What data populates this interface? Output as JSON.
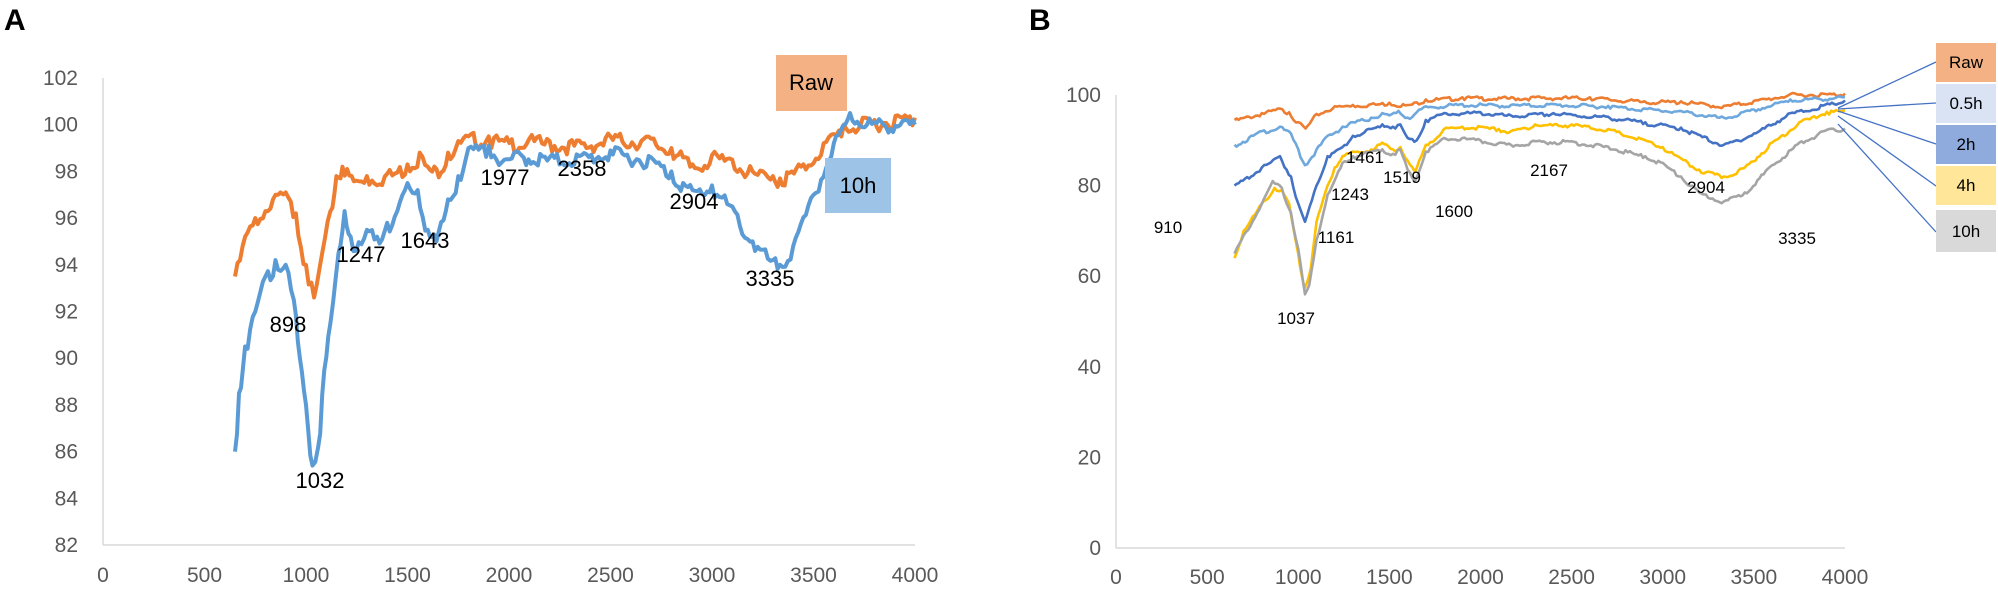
{
  "chart_data": [
    {
      "panel": "A",
      "type": "line",
      "title": "",
      "xlabel": "",
      "ylabel": "",
      "xlim": [
        0,
        4000
      ],
      "ylim": [
        82,
        102
      ],
      "xticks": [
        0,
        500,
        1000,
        1500,
        2000,
        2500,
        3000,
        3500,
        4000
      ],
      "yticks": [
        82,
        84,
        86,
        88,
        90,
        92,
        94,
        96,
        98,
        100,
        102
      ],
      "series": [
        {
          "name": "Raw",
          "color": "#ED7D31",
          "points": [
            [
              650,
              93.5
            ],
            [
              700,
              95.2
            ],
            [
              750,
              96.0
            ],
            [
              800,
              96.3
            ],
            [
              850,
              97.0
            ],
            [
              900,
              97.1
            ],
            [
              950,
              96.2
            ],
            [
              1000,
              94.0
            ],
            [
              1040,
              92.6
            ],
            [
              1080,
              94.5
            ],
            [
              1120,
              96.3
            ],
            [
              1150,
              97.8
            ],
            [
              1180,
              98.2
            ],
            [
              1247,
              97.6
            ],
            [
              1300,
              97.8
            ],
            [
              1400,
              97.9
            ],
            [
              1500,
              98.3
            ],
            [
              1560,
              98.8
            ],
            [
              1600,
              98.2
            ],
            [
              1643,
              98.1
            ],
            [
              1700,
              98.8
            ],
            [
              1750,
              99.3
            ],
            [
              1800,
              99.5
            ],
            [
              1900,
              99.5
            ],
            [
              1977,
              99.3
            ],
            [
              2100,
              99.4
            ],
            [
              2200,
              99.3
            ],
            [
              2358,
              99.2
            ],
            [
              2500,
              99.5
            ],
            [
              2700,
              99.4
            ],
            [
              2800,
              99.0
            ],
            [
              2904,
              98.3
            ],
            [
              3000,
              98.7
            ],
            [
              3100,
              98.5
            ],
            [
              3200,
              98.0
            ],
            [
              3300,
              97.8
            ],
            [
              3335,
              97.7
            ],
            [
              3450,
              98.3
            ],
            [
              3550,
              99.2
            ],
            [
              3650,
              100.0
            ],
            [
              3800,
              100.2
            ],
            [
              3950,
              100.4
            ],
            [
              4000,
              100.3
            ]
          ]
        },
        {
          "name": "10h",
          "color": "#5B9BD5",
          "points": [
            [
              650,
              86.0
            ],
            [
              670,
              88.5
            ],
            [
              700,
              90.5
            ],
            [
              750,
              92.0
            ],
            [
              800,
              93.5
            ],
            [
              850,
              94.2
            ],
            [
              900,
              94.0
            ],
            [
              940,
              92.5
            ],
            [
              970,
              90.0
            ],
            [
              1000,
              88.0
            ],
            [
              1032,
              85.4
            ],
            [
              1060,
              86.2
            ],
            [
              1090,
              89.5
            ],
            [
              1120,
              91.5
            ],
            [
              1160,
              94.5
            ],
            [
              1190,
              96.3
            ],
            [
              1220,
              95.2
            ],
            [
              1247,
              94.6
            ],
            [
              1300,
              95.5
            ],
            [
              1350,
              95.2
            ],
            [
              1400,
              95.8
            ],
            [
              1450,
              96.3
            ],
            [
              1500,
              97.5
            ],
            [
              1550,
              97.2
            ],
            [
              1600,
              95.5
            ],
            [
              1643,
              95.0
            ],
            [
              1700,
              96.8
            ],
            [
              1750,
              97.8
            ],
            [
              1800,
              99.0
            ],
            [
              1900,
              99.1
            ],
            [
              1977,
              98.5
            ],
            [
              2050,
              98.8
            ],
            [
              2200,
              98.6
            ],
            [
              2358,
              98.7
            ],
            [
              2500,
              98.9
            ],
            [
              2700,
              98.6
            ],
            [
              2800,
              98.0
            ],
            [
              2904,
              97.2
            ],
            [
              3000,
              97.4
            ],
            [
              3100,
              96.5
            ],
            [
              3200,
              95.0
            ],
            [
              3300,
              94.2
            ],
            [
              3335,
              94.0
            ],
            [
              3400,
              94.8
            ],
            [
              3500,
              97.0
            ],
            [
              3600,
              99.2
            ],
            [
              3680,
              100.5
            ],
            [
              3800,
              100.1
            ],
            [
              3950,
              100.2
            ],
            [
              4000,
              100.0
            ]
          ]
        }
      ],
      "legend": [
        "Raw",
        "10h"
      ],
      "annotations": [
        "898",
        "1032",
        "1247",
        "1643",
        "1977",
        "2358",
        "2904",
        "3335"
      ]
    },
    {
      "panel": "B",
      "type": "line",
      "title": "",
      "xlabel": "",
      "ylabel": "",
      "xlim": [
        0,
        4000
      ],
      "ylim": [
        0,
        100
      ],
      "xticks": [
        0,
        500,
        1000,
        1500,
        2000,
        2500,
        3000,
        3500,
        4000
      ],
      "yticks": [
        0,
        20,
        40,
        60,
        80,
        100
      ],
      "series": [
        {
          "name": "Raw",
          "color": "#ED7D31",
          "points": [
            [
              650,
              94.5
            ],
            [
              800,
              96.0
            ],
            [
              900,
              97.0
            ],
            [
              950,
              96.2
            ],
            [
              1000,
              94.0
            ],
            [
              1040,
              92.6
            ],
            [
              1100,
              95.8
            ],
            [
              1200,
              97.5
            ],
            [
              1300,
              97.8
            ],
            [
              1400,
              98.0
            ],
            [
              1500,
              98.3
            ],
            [
              1600,
              97.8
            ],
            [
              1700,
              99.0
            ],
            [
              1900,
              99.5
            ],
            [
              2100,
              99.4
            ],
            [
              2300,
              99.5
            ],
            [
              2600,
              99.5
            ],
            [
              2900,
              98.6
            ],
            [
              3100,
              98.6
            ],
            [
              3335,
              97.6
            ],
            [
              3500,
              98.7
            ],
            [
              3700,
              100.2
            ],
            [
              4000,
              100.3
            ]
          ]
        },
        {
          "name": "0.5h",
          "color": "#6FA8DC",
          "points": [
            [
              650,
              89.0
            ],
            [
              800,
              92.0
            ],
            [
              900,
              93.0
            ],
            [
              960,
              91.5
            ],
            [
              1000,
              88.0
            ],
            [
              1037,
              84.5
            ],
            [
              1100,
              88.0
            ],
            [
              1161,
              91.0
            ],
            [
              1243,
              93.0
            ],
            [
              1300,
              94.0
            ],
            [
              1400,
              95.0
            ],
            [
              1461,
              96.0
            ],
            [
              1500,
              95.5
            ],
            [
              1550,
              96.5
            ],
            [
              1600,
              95.0
            ],
            [
              1700,
              97.5
            ],
            [
              1900,
              98.0
            ],
            [
              2167,
              97.8
            ],
            [
              2400,
              98.0
            ],
            [
              2700,
              97.6
            ],
            [
              2904,
              97.0
            ],
            [
              3100,
              96.5
            ],
            [
              3335,
              95.0
            ],
            [
              3500,
              96.8
            ],
            [
              3700,
              99.0
            ],
            [
              4000,
              99.6
            ]
          ]
        },
        {
          "name": "2h",
          "color": "#4472C4",
          "points": [
            [
              650,
              80.0
            ],
            [
              800,
              84.0
            ],
            [
              900,
              86.5
            ],
            [
              960,
              82.0
            ],
            [
              1000,
              76.0
            ],
            [
              1037,
              72.0
            ],
            [
              1100,
              80.0
            ],
            [
              1161,
              86.5
            ],
            [
              1243,
              88.5
            ],
            [
              1300,
              91.0
            ],
            [
              1400,
              92.5
            ],
            [
              1461,
              93.5
            ],
            [
              1519,
              93.0
            ],
            [
              1560,
              93.5
            ],
            [
              1600,
              90.5
            ],
            [
              1650,
              90.0
            ],
            [
              1700,
              94.5
            ],
            [
              1800,
              96.0
            ],
            [
              2000,
              96.2
            ],
            [
              2167,
              95.5
            ],
            [
              2400,
              96.0
            ],
            [
              2700,
              95.2
            ],
            [
              2904,
              94.0
            ],
            [
              3100,
              92.8
            ],
            [
              3335,
              89.0
            ],
            [
              3500,
              91.5
            ],
            [
              3700,
              96.0
            ],
            [
              4000,
              98.8
            ]
          ]
        },
        {
          "name": "4h",
          "color": "#FFC000",
          "points": [
            [
              650,
              64.0
            ],
            [
              700,
              70.0
            ],
            [
              800,
              76.0
            ],
            [
              870,
              79.5
            ],
            [
              910,
              79.0
            ],
            [
              950,
              76.0
            ],
            [
              990,
              67.0
            ],
            [
              1020,
              60.0
            ],
            [
              1037,
              57.5
            ],
            [
              1070,
              62.0
            ],
            [
              1100,
              72.0
            ],
            [
              1161,
              80.0
            ],
            [
              1200,
              84.0
            ],
            [
              1243,
              86.5
            ],
            [
              1300,
              87.5
            ],
            [
              1400,
              88.0
            ],
            [
              1461,
              89.5
            ],
            [
              1519,
              88.0
            ],
            [
              1560,
              88.5
            ],
            [
              1600,
              85.5
            ],
            [
              1640,
              83.0
            ],
            [
              1700,
              89.0
            ],
            [
              1800,
              92.5
            ],
            [
              1900,
              93.0
            ],
            [
              2000,
              93.0
            ],
            [
              2100,
              92.5
            ],
            [
              2167,
              92.0
            ],
            [
              2300,
              93.5
            ],
            [
              2500,
              93.5
            ],
            [
              2700,
              92.5
            ],
            [
              2904,
              90.0
            ],
            [
              3000,
              88.5
            ],
            [
              3100,
              86.0
            ],
            [
              3200,
              83.5
            ],
            [
              3335,
              82.0
            ],
            [
              3450,
              84.0
            ],
            [
              3600,
              89.5
            ],
            [
              3750,
              94.0
            ],
            [
              3900,
              96.3
            ],
            [
              4000,
              96.6
            ]
          ]
        },
        {
          "name": "10h",
          "color": "#A5A5A5",
          "points": [
            [
              650,
              65.0
            ],
            [
              700,
              69.0
            ],
            [
              800,
              76.0
            ],
            [
              860,
              81.0
            ],
            [
              910,
              79.5
            ],
            [
              960,
              74.0
            ],
            [
              1000,
              66.0
            ],
            [
              1037,
              56.0
            ],
            [
              1060,
              58.0
            ],
            [
              1100,
              68.0
            ],
            [
              1161,
              78.0
            ],
            [
              1243,
              85.0
            ],
            [
              1300,
              86.5
            ],
            [
              1400,
              87.5
            ],
            [
              1461,
              88.0
            ],
            [
              1519,
              87.0
            ],
            [
              1560,
              88.0
            ],
            [
              1600,
              83.5
            ],
            [
              1640,
              81.0
            ],
            [
              1700,
              87.5
            ],
            [
              1800,
              90.5
            ],
            [
              1900,
              90.5
            ],
            [
              2000,
              90.0
            ],
            [
              2167,
              89.0
            ],
            [
              2300,
              89.8
            ],
            [
              2500,
              89.8
            ],
            [
              2700,
              88.6
            ],
            [
              2904,
              86.5
            ],
            [
              3000,
              85.0
            ],
            [
              3100,
              82.0
            ],
            [
              3200,
              78.5
            ],
            [
              3335,
              76.5
            ],
            [
              3450,
              78.5
            ],
            [
              3600,
              84.5
            ],
            [
              3750,
              89.5
            ],
            [
              3900,
              92.3
            ],
            [
              4000,
              92.6
            ]
          ]
        }
      ],
      "legend": [
        "Raw",
        "0.5h",
        "2h",
        "4h",
        "10h"
      ],
      "annotations": [
        "910",
        "1037",
        "1161",
        "1243",
        "1461",
        "1519",
        "1600",
        "2167",
        "2904",
        "3335"
      ]
    }
  ],
  "colors": {
    "raw": "#ED7D31",
    "blue": "#5B9BD5",
    "legend_raw": "#F4B183",
    "legend_10h_a": "#9DC3E6",
    "legend_05h": "#DAE3F3",
    "legend_2h": "#8FAADC",
    "legend_4h": "#FFE699",
    "legend_10h_b": "#D9D9D9"
  }
}
